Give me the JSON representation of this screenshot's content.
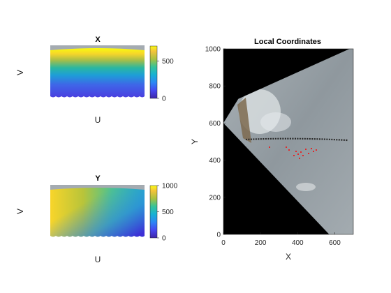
{
  "chart_data": [
    {
      "type": "heatmap",
      "title": "X",
      "xlabel": "U",
      "ylabel": "V",
      "colorbar": {
        "ticks": [
          0,
          500
        ],
        "clim": [
          0,
          700
        ],
        "colormap": "parula"
      }
    },
    {
      "type": "heatmap",
      "title": "Y",
      "xlabel": "U",
      "ylabel": "V",
      "colorbar": {
        "ticks": [
          0,
          500,
          1000
        ],
        "clim": [
          0,
          1000
        ],
        "colormap": "parula"
      }
    },
    {
      "type": "image",
      "title": "Local Coordinates",
      "xlabel": "X",
      "ylabel": "Y",
      "xlim": [
        0,
        700
      ],
      "ylim": [
        0,
        1000
      ],
      "xticks": [
        0,
        200,
        400,
        600
      ],
      "yticks": [
        0,
        200,
        400,
        600,
        800,
        1000
      ],
      "outline": [
        [
          0,
          600
        ],
        [
          80,
          730
        ],
        [
          680,
          1000
        ],
        [
          700,
          1000
        ],
        [
          700,
          0
        ],
        [
          570,
          0
        ]
      ]
    }
  ]
}
